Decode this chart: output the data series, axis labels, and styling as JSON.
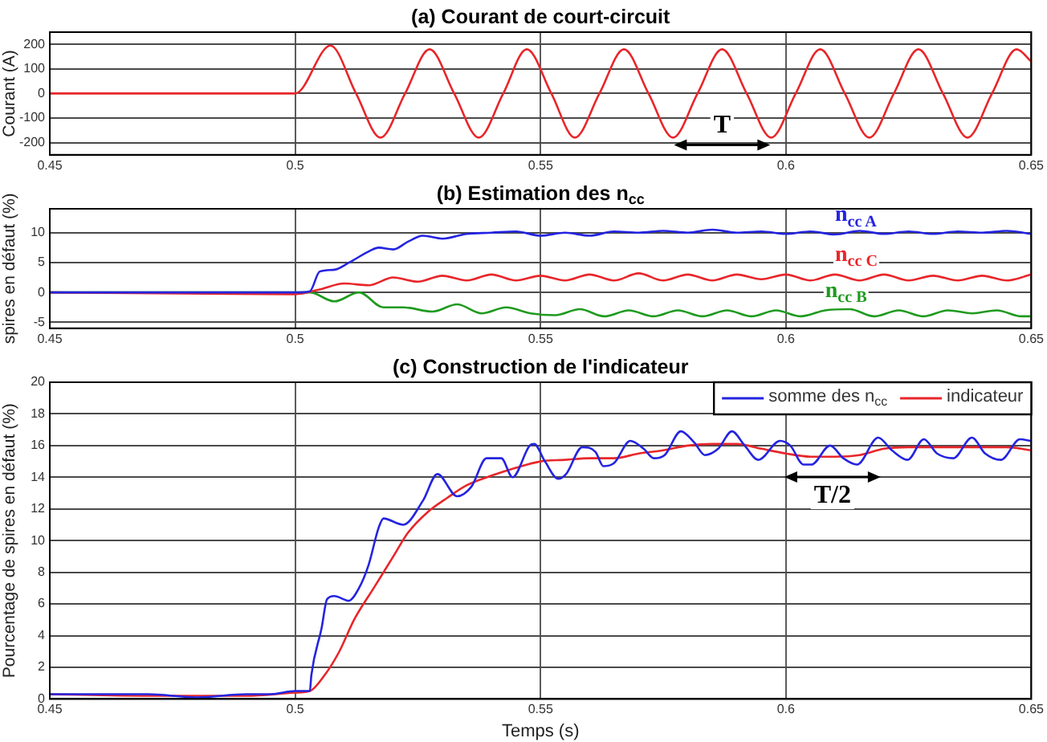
{
  "chart_data": [
    {
      "type": "line",
      "title": "(a) Courant de court-circuit",
      "ylabel": "Courant (A)",
      "xlim": [
        0.45,
        0.65
      ],
      "xticks": [
        0.45,
        0.5,
        0.55,
        0.6,
        0.65
      ],
      "ylim": [
        -250,
        250
      ],
      "yticks": [
        -200,
        -100,
        0,
        100,
        200
      ],
      "grid": true,
      "legend": false,
      "marker": "none",
      "annotations": [
        {
          "text": "T",
          "x": 0.587,
          "y": -131
        }
      ],
      "series": [
        {
          "color": "#e8262a",
          "x": [
            0.45,
            0.5,
            0.5072,
            0.5124,
            0.5174,
            0.5224,
            0.5274,
            0.5324,
            0.5374,
            0.5424,
            0.5472,
            0.5522,
            0.557,
            0.562,
            0.567,
            0.572,
            0.577,
            0.582,
            0.587,
            0.592,
            0.597,
            0.602,
            0.607,
            0.612,
            0.617,
            0.622,
            0.627,
            0.632,
            0.637,
            0.642,
            0.647,
            0.65
          ],
          "values": [
            0,
            0,
            195,
            0,
            -180,
            0,
            180,
            0,
            -180,
            0,
            180,
            0,
            -180,
            0,
            180,
            0,
            -180,
            0,
            180,
            0,
            -180,
            0,
            180,
            0,
            -180,
            0,
            180,
            0,
            -180,
            0,
            180,
            130
          ]
        }
      ]
    },
    {
      "type": "line",
      "title": "(b) Estimation des n$_{cc}$",
      "ylabel": "spires en défaut (%)",
      "xlim": [
        0.45,
        0.65
      ],
      "xticks": [
        0.45,
        0.5,
        0.55,
        0.6,
        0.65
      ],
      "ylim": [
        -6,
        14
      ],
      "yticks": [
        -5,
        0,
        5,
        10
      ],
      "grid": true,
      "legend": false,
      "marker": "none",
      "series": [
        {
          "name": "n$_{cc A}$",
          "color": "#2424e0",
          "x": [
            0.45,
            0.5,
            0.503,
            0.505,
            0.508,
            0.511,
            0.5153,
            0.517,
            0.52,
            0.523,
            0.526,
            0.53,
            0.535,
            0.54,
            0.545,
            0.55,
            0.555,
            0.56,
            0.565,
            0.57,
            0.575,
            0.58,
            0.585,
            0.59,
            0.595,
            0.6,
            0.605,
            0.61,
            0.615,
            0.62,
            0.625,
            0.63,
            0.635,
            0.64,
            0.645,
            0.65
          ],
          "values": [
            0,
            0,
            0.2,
            3.5,
            3.8,
            5,
            7,
            7.5,
            7.2,
            8.5,
            9.5,
            9,
            9.8,
            10,
            10.2,
            9.5,
            10,
            9.5,
            10.2,
            10,
            10.3,
            10,
            10.5,
            10,
            10.2,
            9.8,
            10.2,
            9.7,
            10.3,
            9.8,
            10.2,
            9.8,
            10.2,
            10,
            10.3,
            9.8
          ]
        },
        {
          "name": "n$_{cc C}$",
          "color": "#e8262a",
          "x": [
            0.45,
            0.5,
            0.505,
            0.51,
            0.515,
            0.52,
            0.525,
            0.53,
            0.535,
            0.54,
            0.545,
            0.55,
            0.555,
            0.56,
            0.565,
            0.57,
            0.575,
            0.58,
            0.585,
            0.59,
            0.595,
            0.6,
            0.605,
            0.61,
            0.615,
            0.62,
            0.625,
            0.63,
            0.635,
            0.64,
            0.645,
            0.65
          ],
          "values": [
            0,
            -0.3,
            0.5,
            1.5,
            1.2,
            2.5,
            1.8,
            2.8,
            2,
            3,
            2,
            2.8,
            2,
            3,
            2,
            3.2,
            2,
            3,
            2,
            3,
            2.2,
            3,
            2,
            3,
            2,
            3,
            2,
            2.8,
            2,
            2.8,
            2,
            3
          ]
        },
        {
          "name": "n$_{cc B}$",
          "color": "#1f9a1f",
          "x": [
            0.45,
            0.503,
            0.508,
            0.513,
            0.518,
            0.522,
            0.528,
            0.533,
            0.538,
            0.543,
            0.548,
            0.553,
            0.558,
            0.563,
            0.568,
            0.573,
            0.578,
            0.583,
            0.588,
            0.593,
            0.598,
            0.603,
            0.608,
            0.613,
            0.618,
            0.623,
            0.628,
            0.633,
            0.638,
            0.643,
            0.648,
            0.65
          ],
          "values": [
            0,
            0,
            -1.5,
            0,
            -2.5,
            -2.5,
            -3.2,
            -2,
            -3.5,
            -2.5,
            -3.5,
            -3.8,
            -2.8,
            -4,
            -3,
            -4,
            -3,
            -4,
            -3,
            -4,
            -3,
            -4,
            -3,
            -2.8,
            -4,
            -3,
            -4,
            -3,
            -3.5,
            -3,
            -4,
            -4
          ]
        }
      ]
    },
    {
      "type": "line",
      "title": "(c) Construction de l'indicateur",
      "xlabel": "Temps (s)",
      "ylabel": "Pourcentage de spires en défaut (%)",
      "xlim": [
        0.45,
        0.65
      ],
      "xticks": [
        0.45,
        0.5,
        0.55,
        0.6,
        0.65
      ],
      "ylim": [
        0,
        20
      ],
      "yticks": [
        0,
        2,
        4,
        6,
        8,
        10,
        12,
        14,
        16,
        18,
        20
      ],
      "grid": true,
      "legend": "top right",
      "marker": "none",
      "annotations": [
        {
          "text": "T/2",
          "x": 0.6095,
          "y": 12.8
        }
      ],
      "series": [
        {
          "name": "somme des n$_{cc}$",
          "color": "#2424e0",
          "x": [
            0.45,
            0.47,
            0.48,
            0.49,
            0.495,
            0.5,
            0.503,
            0.5033,
            0.5054,
            0.5065,
            0.508,
            0.5109,
            0.513,
            0.515,
            0.517,
            0.518,
            0.522,
            0.526,
            0.529,
            0.533,
            0.5359,
            0.539,
            0.542,
            0.5443,
            0.5478,
            0.5487,
            0.5509,
            0.5536,
            0.5552,
            0.5585,
            0.5612,
            0.5628,
            0.565,
            0.5683,
            0.571,
            0.5731,
            0.5753,
            0.5786,
            0.5813,
            0.5835,
            0.5862,
            0.589,
            0.5916,
            0.5944,
            0.5988,
            0.6009,
            0.6036,
            0.6052,
            0.609,
            0.6117,
            0.6145,
            0.6188,
            0.6216,
            0.6248,
            0.6281,
            0.6308,
            0.6341,
            0.6379,
            0.6406,
            0.6438,
            0.6477,
            0.6499
          ],
          "values": [
            0.3,
            0.3,
            0.1,
            0.3,
            0.3,
            0.5,
            0.5,
            1.5,
            4.5,
            6.3,
            6.5,
            6.2,
            7,
            8.5,
            10.8,
            11.4,
            11,
            12.5,
            14.2,
            12.8,
            13.4,
            15.2,
            15.2,
            14,
            16,
            16.1,
            15,
            13.9,
            14.2,
            15.9,
            15.6,
            14.7,
            14.9,
            16.3,
            15.8,
            15.2,
            15.4,
            16.9,
            16.2,
            15.4,
            15.8,
            16.9,
            16,
            15.1,
            16.3,
            16,
            14.8,
            14.8,
            16,
            15.2,
            14.8,
            16.5,
            15.7,
            15.1,
            16.4,
            15.5,
            15.2,
            16.5,
            15.5,
            15.1,
            16.4,
            16.3
          ]
        },
        {
          "name": "indicateur",
          "color": "#e8262a",
          "x": [
            0.45,
            0.47,
            0.49,
            0.5,
            0.503,
            0.506,
            0.509,
            0.512,
            0.516,
            0.52,
            0.523,
            0.527,
            0.531,
            0.535,
            0.54,
            0.545,
            0.55,
            0.555,
            0.56,
            0.565,
            0.57,
            0.575,
            0.58,
            0.585,
            0.59,
            0.595,
            0.6,
            0.605,
            0.61,
            0.615,
            0.62,
            0.625,
            0.63,
            0.635,
            0.64,
            0.645,
            0.65
          ],
          "values": [
            0.3,
            0.2,
            0.2,
            0.4,
            0.5,
            1.5,
            3,
            5,
            7,
            9,
            10.5,
            11.8,
            12.7,
            13.5,
            14.1,
            14.6,
            15,
            15.1,
            15.2,
            15.2,
            15.5,
            15.7,
            16,
            16.1,
            16.1,
            15.8,
            15.5,
            15.3,
            15.3,
            15.4,
            15.8,
            15.9,
            15.9,
            15.9,
            15.9,
            15.9,
            15.7
          ]
        }
      ]
    }
  ]
}
